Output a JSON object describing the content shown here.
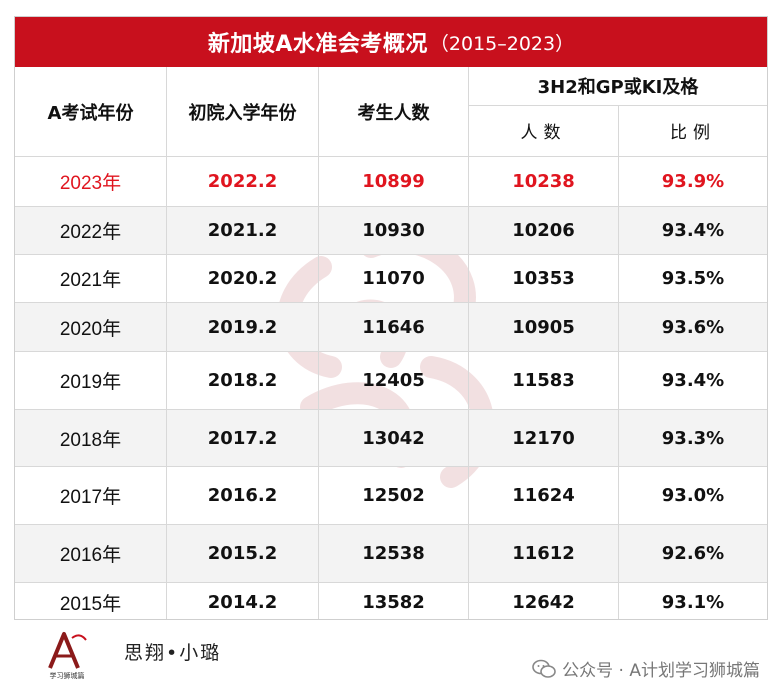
{
  "title": {
    "main": "新加坡A水准会考概况",
    "years": "（2015–2023）"
  },
  "headers": {
    "exam_year": "A考试年份",
    "entry_year": "初院入学年份",
    "candidates": "考生人数",
    "pass_group": "3H2和GP或KI及格",
    "pass_count": "人数",
    "pass_rate": "比例"
  },
  "rows": [
    {
      "exam_year": "2023年",
      "entry_year": "2022.2",
      "candidates": "10899",
      "pass_count": "10238",
      "pass_rate": "93.9%"
    },
    {
      "exam_year": "2022年",
      "entry_year": "2021.2",
      "candidates": "10930",
      "pass_count": "10206",
      "pass_rate": "93.4%"
    },
    {
      "exam_year": "2021年",
      "entry_year": "2020.2",
      "candidates": "11070",
      "pass_count": "10353",
      "pass_rate": "93.5%"
    },
    {
      "exam_year": "2020年",
      "entry_year": "2019.2",
      "candidates": "11646",
      "pass_count": "10905",
      "pass_rate": "93.6%"
    },
    {
      "exam_year": "2019年",
      "entry_year": "2018.2",
      "candidates": "12405",
      "pass_count": "11583",
      "pass_rate": "93.4%"
    },
    {
      "exam_year": "2018年",
      "entry_year": "2017.2",
      "candidates": "13042",
      "pass_count": "12170",
      "pass_rate": "93.3%"
    },
    {
      "exam_year": "2017年",
      "entry_year": "2016.2",
      "candidates": "12502",
      "pass_count": "11624",
      "pass_rate": "93.0%"
    },
    {
      "exam_year": "2016年",
      "entry_year": "2015.2",
      "candidates": "12538",
      "pass_count": "11612",
      "pass_rate": "92.6%"
    },
    {
      "exam_year": "2015年",
      "entry_year": "2014.2",
      "candidates": "13582",
      "pass_count": "12642",
      "pass_rate": "93.1%"
    }
  ],
  "footer": {
    "author": "思翔•小璐",
    "logo_text": "学习狮城篇",
    "wechat_label": "公众号 · A计划学习狮城篇"
  },
  "colors": {
    "accent_red": "#c8101d",
    "highlight_text": "#e0151f",
    "stripe": "#f3f3f3"
  }
}
